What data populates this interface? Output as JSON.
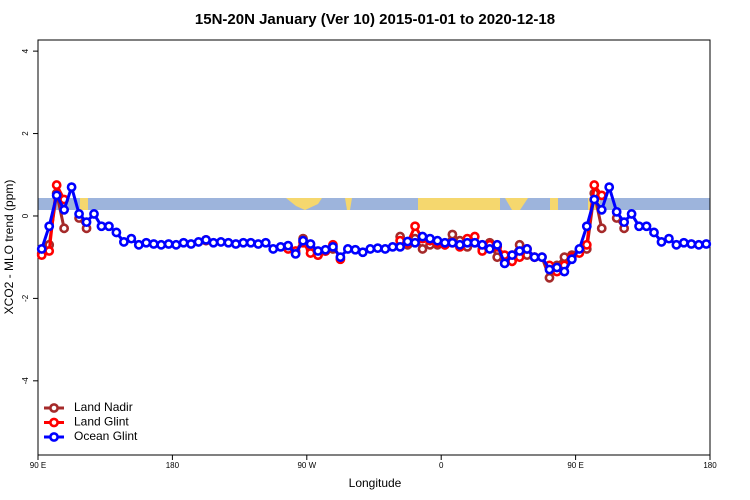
{
  "chart_data": {
    "type": "line",
    "title": "15N-20N January (Ver 10)   2015-01-01 to 2020-12-18",
    "x_label": "Longitude",
    "y_label": "XCO2 - MLO trend (ppm)",
    "xlim": [
      90,
      540
    ],
    "ylim": [
      -5.8,
      4.27
    ],
    "xticks": [
      {
        "value": 90,
        "label": "90 E"
      },
      180,
      {
        "value": 270,
        "label": "90 W"
      },
      {
        "value": 360,
        "label": "0"
      },
      {
        "value": 450,
        "label": "90 E"
      },
      {
        "value": 540,
        "label": "180"
      }
    ],
    "yticks": [
      -4,
      -2,
      0,
      2,
      4
    ],
    "legend": "bottom-left",
    "x": [
      92.5,
      97.5,
      102.5,
      107.5,
      112.5,
      117.5,
      122.5,
      127.5,
      132.5,
      137.5,
      142.5,
      147.5,
      152.5,
      157.5,
      162.5,
      167.5,
      172.5,
      177.5,
      182.5,
      187.5,
      192.5,
      197.5,
      202.5,
      207.5,
      212.5,
      217.5,
      222.5,
      227.5,
      232.5,
      237.5,
      242.5,
      247.5,
      252.5,
      257.5,
      262.5,
      267.5,
      272.5,
      277.5,
      282.5,
      287.5,
      292.5,
      297.5,
      302.5,
      307.5,
      312.5,
      317.5,
      322.5,
      327.5,
      332.5,
      337.5,
      342.5,
      347.5,
      352.5,
      357.5,
      362.5,
      367.5,
      372.5,
      377.5,
      382.5,
      387.5,
      392.5,
      397.5,
      402.5,
      407.5,
      412.5,
      417.5,
      422.5,
      427.5,
      432.5,
      437.5,
      442.5,
      447.5,
      452.5,
      457.5,
      462.5,
      467.5,
      472.5,
      477.5,
      482.5,
      487.5,
      492.5,
      497.5,
      502.5,
      507.5,
      512.5,
      517.5,
      522.5,
      527.5,
      532.5,
      537.5
    ],
    "series": [
      {
        "name": "Land Nadir",
        "color": "#a52a2a",
        "values": [
          -0.9,
          -0.7,
          0.55,
          -0.3,
          null,
          -0.05,
          -0.3,
          null,
          null,
          null,
          null,
          null,
          null,
          null,
          null,
          null,
          null,
          null,
          null,
          null,
          null,
          null,
          -0.6,
          null,
          null,
          null,
          null,
          null,
          null,
          null,
          null,
          null,
          null,
          -0.75,
          -0.9,
          -0.55,
          -0.8,
          -0.95,
          -0.85,
          -0.8,
          null,
          null,
          null,
          null,
          null,
          null,
          null,
          null,
          -0.5,
          -0.7,
          -0.55,
          -0.8,
          -0.7,
          -0.7,
          -0.7,
          -0.45,
          -0.6,
          -0.75,
          -0.65,
          -0.8,
          -0.65,
          -1.0,
          -1.05,
          -0.95,
          -0.7,
          -0.95,
          -1.0,
          -1.0,
          -1.5,
          -1.2,
          -1.0,
          -0.95,
          -0.85,
          -0.8,
          0.55,
          -0.3,
          null,
          -0.05,
          -0.3,
          null,
          null,
          null,
          null,
          null,
          null,
          null,
          null,
          null,
          null,
          null
        ]
      },
      {
        "name": "Land Glint",
        "color": "#ff0000",
        "values": [
          -0.95,
          -0.85,
          0.75,
          0.4,
          null,
          null,
          null,
          null,
          null,
          null,
          null,
          null,
          null,
          null,
          null,
          null,
          null,
          null,
          null,
          null,
          null,
          null,
          -0.58,
          null,
          null,
          null,
          null,
          null,
          null,
          null,
          null,
          null,
          null,
          -0.8,
          -0.85,
          -0.65,
          -0.9,
          -0.95,
          -0.85,
          -0.7,
          -1.05,
          null,
          null,
          null,
          null,
          null,
          null,
          null,
          -0.6,
          -0.65,
          -0.25,
          -0.55,
          -0.6,
          -0.65,
          -0.7,
          -0.65,
          -0.75,
          -0.55,
          -0.5,
          -0.85,
          -0.7,
          -0.75,
          -0.95,
          -1.1,
          -1.0,
          -0.8,
          -1.0,
          null,
          -1.2,
          -1.35,
          -1.2,
          -1.0,
          -0.9,
          -0.7,
          0.75,
          0.5,
          null,
          null,
          null,
          null,
          null,
          null,
          null,
          null,
          null,
          null,
          null,
          null,
          null,
          null
        ]
      },
      {
        "name": "Ocean Glint",
        "color": "#0000ff",
        "values": [
          -0.8,
          -0.25,
          0.5,
          0.15,
          0.7,
          0.05,
          -0.15,
          0.05,
          -0.25,
          -0.25,
          -0.4,
          -0.63,
          -0.55,
          -0.7,
          -0.65,
          -0.68,
          -0.7,
          -0.68,
          -0.7,
          -0.65,
          -0.68,
          -0.63,
          -0.58,
          -0.65,
          -0.63,
          -0.65,
          -0.68,
          -0.65,
          -0.65,
          -0.68,
          -0.65,
          -0.8,
          -0.75,
          -0.72,
          -0.92,
          -0.6,
          -0.68,
          -0.85,
          -0.82,
          -0.75,
          -1.0,
          -0.8,
          -0.82,
          -0.88,
          -0.8,
          -0.78,
          -0.8,
          -0.75,
          -0.75,
          -0.62,
          -0.65,
          -0.5,
          -0.55,
          -0.6,
          -0.65,
          -0.65,
          -0.7,
          -0.65,
          -0.65,
          -0.7,
          -0.8,
          -0.7,
          -1.15,
          -0.95,
          -0.85,
          -0.8,
          -1.0,
          -1.0,
          -1.3,
          -1.25,
          -1.35,
          -1.05,
          -0.8,
          -0.25,
          0.4,
          0.15,
          0.7,
          0.1,
          -0.15,
          0.05,
          -0.25,
          -0.25,
          -0.4,
          -0.63,
          -0.55,
          -0.7,
          -0.65,
          -0.68,
          -0.7,
          -0.68
        ]
      }
    ]
  }
}
